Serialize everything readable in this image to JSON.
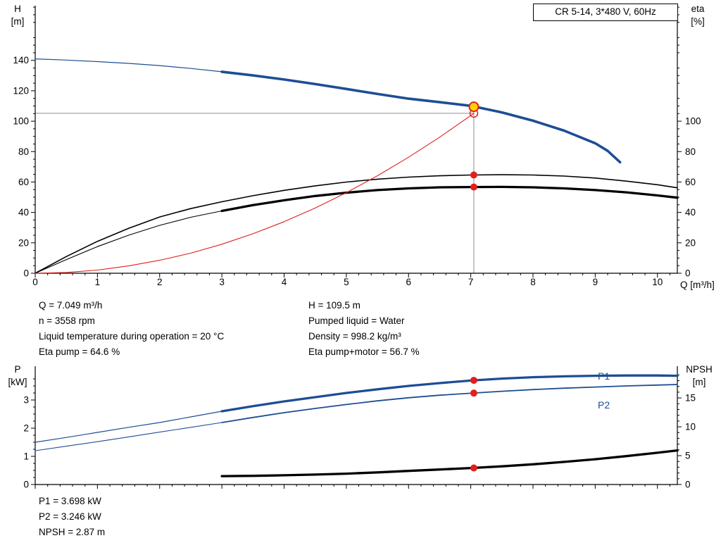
{
  "header": {
    "model_box": "CR 5-14, 3*480 V, 60Hz"
  },
  "top_chart": {
    "left_axis_title": [
      "H",
      "[m]"
    ],
    "right_axis_title": [
      "eta",
      "[%]"
    ],
    "x_axis_title": "Q [m³/h]"
  },
  "bottom_chart": {
    "left_axis_title": [
      "P",
      "[kW]"
    ],
    "right_axis_title": [
      "NPSH",
      "[m]"
    ]
  },
  "results_top": {
    "left": [
      "Q = 7.049 m³/h",
      "n = 3558 rpm",
      "Liquid temperature during operation = 20 °C",
      "Eta pump = 64.6 %"
    ],
    "right": [
      "H = 109.5 m",
      "Pumped liquid = Water",
      "Density = 998.2 kg/m³",
      "Eta pump+motor = 56.7 %"
    ]
  },
  "results_bottom": [
    "P1 = 3.698 kW",
    "P2 = 3.246 kW",
    "NPSH = 2.87 m"
  ],
  "colors": {
    "curve_blue": "#1d4e94",
    "curve_black": "#000000",
    "curve_red": "#e01f1f",
    "marker_red": "#e01f1f",
    "marker_yellow": "#ffd500",
    "crosshair_gray": "#8f8f8f"
  },
  "chart_data": [
    {
      "id": "qh_eta",
      "type": "line",
      "title": "CR 5-14, 3*480 V, 60Hz",
      "xlabel": "Q [m³/h]",
      "ylabel_left": "H [m]",
      "ylabel_right": "eta [%]",
      "xlim": [
        0,
        10.32
      ],
      "ylim_left": [
        0,
        176
      ],
      "ylim_right": [
        0,
        176
      ],
      "x_ticks": [
        0,
        1,
        2,
        3,
        4,
        5,
        6,
        7,
        8,
        9,
        10
      ],
      "x_minor": 0.2,
      "y_ticks_left": [
        0,
        20,
        40,
        60,
        80,
        100,
        120,
        140
      ],
      "y_minor_left": 5,
      "y_ticks_right": [
        0,
        20,
        40,
        60,
        80,
        100
      ],
      "y_minor_right": 5,
      "grid": false,
      "legend": "none",
      "series": [
        {
          "name": "H",
          "axis": "left",
          "color": "#1d4e94",
          "thick_from": 3,
          "width_thin": 1.2,
          "width_thick": 3.6,
          "points": [
            [
              0,
              141
            ],
            [
              0.5,
              140.2
            ],
            [
              1,
              139.2
            ],
            [
              1.5,
              138
            ],
            [
              2,
              136.6
            ],
            [
              2.5,
              134.7
            ],
            [
              3,
              132.5
            ],
            [
              3.5,
              130.1
            ],
            [
              4,
              127.4
            ],
            [
              4.5,
              124.4
            ],
            [
              5,
              121.2
            ],
            [
              5.5,
              117.9
            ],
            [
              6,
              114.8
            ],
            [
              6.5,
              112.5
            ],
            [
              7,
              110.1
            ],
            [
              7.5,
              105.8
            ],
            [
              8,
              100.3
            ],
            [
              8.5,
              93.8
            ],
            [
              9,
              85.5
            ],
            [
              9.2,
              80.5
            ],
            [
              9.4,
              73
            ]
          ]
        },
        {
          "name": "Eta pump",
          "axis": "right",
          "color": "#000000",
          "width": 1.6,
          "points": [
            [
              0,
              0
            ],
            [
              0.5,
              11
            ],
            [
              1,
              21
            ],
            [
              1.5,
              29.5
            ],
            [
              2,
              37
            ],
            [
              2.5,
              42.5
            ],
            [
              3,
              47
            ],
            [
              3.5,
              51
            ],
            [
              4,
              54.5
            ],
            [
              4.5,
              57.5
            ],
            [
              5,
              60
            ],
            [
              5.5,
              61.9
            ],
            [
              6,
              63.2
            ],
            [
              6.5,
              64.1
            ],
            [
              7,
              64.6
            ],
            [
              7.5,
              64.8
            ],
            [
              8,
              64.6
            ],
            [
              8.5,
              63.9
            ],
            [
              9,
              62.6
            ],
            [
              9.5,
              60.6
            ],
            [
              10,
              58.2
            ],
            [
              10.32,
              56.2
            ]
          ]
        },
        {
          "name": "Eta pump+motor",
          "axis": "right",
          "color": "#000000",
          "thick_from": 3,
          "width_thin": 1.1,
          "width_thick": 3.3,
          "points": [
            [
              0,
              0
            ],
            [
              0.5,
              9
            ],
            [
              1,
              17.5
            ],
            [
              1.5,
              25
            ],
            [
              2,
              31.5
            ],
            [
              2.5,
              36.8
            ],
            [
              3,
              41
            ],
            [
              3.5,
              44.8
            ],
            [
              4,
              48
            ],
            [
              4.5,
              50.8
            ],
            [
              5,
              53
            ],
            [
              5.5,
              54.7
            ],
            [
              6,
              55.8
            ],
            [
              6.5,
              56.5
            ],
            [
              7,
              56.7
            ],
            [
              7.5,
              56.8
            ],
            [
              8,
              56.5
            ],
            [
              8.5,
              55.8
            ],
            [
              9,
              54.7
            ],
            [
              9.5,
              53.2
            ],
            [
              10,
              51.2
            ],
            [
              10.32,
              49.7
            ]
          ]
        },
        {
          "name": "Reduced speed curve",
          "axis": "left",
          "color": "#e01f1f",
          "width": 1.1,
          "points": [
            [
              0,
              0
            ],
            [
              0.5,
              0.5
            ],
            [
              1,
              2.1
            ],
            [
              1.5,
              4.8
            ],
            [
              2,
              8.5
            ],
            [
              2.5,
              13.2
            ],
            [
              3,
              19.1
            ],
            [
              3.5,
              26
            ],
            [
              4,
              33.9
            ],
            [
              4.5,
              42.9
            ],
            [
              5,
              53
            ],
            [
              5.5,
              64.1
            ],
            [
              6,
              76.3
            ],
            [
              6.5,
              89.5
            ],
            [
              7,
              103.7
            ],
            [
              7.05,
              105.2
            ]
          ]
        }
      ],
      "markers": [
        {
          "name": "head-ring-marker",
          "kind": "ring",
          "x": 7.05,
          "y": 105.2,
          "axis": "left",
          "r": 5.5
        },
        {
          "name": "duty-point-marker",
          "kind": "duty",
          "x": 7.049,
          "y": 109.5,
          "axis": "left",
          "r": 6.5
        },
        {
          "name": "eta-pump-point-marker",
          "kind": "dot",
          "x": 7.049,
          "y": 64.6,
          "axis": "right",
          "r": 5
        },
        {
          "name": "eta-pump-motor-point-marker",
          "kind": "dot",
          "x": 7.049,
          "y": 56.7,
          "axis": "right",
          "r": 5
        }
      ],
      "crosshair": {
        "x": 7.049,
        "v_top": 109.5,
        "h_level": 105.2,
        "h_end": 7.05
      },
      "duty_point": {
        "Q": 7.049,
        "H": 109.5,
        "eta_pump": 64.6,
        "eta_pump_motor": 56.7
      }
    },
    {
      "id": "power_npsh",
      "type": "line",
      "title": "",
      "xlabel": "Q [m³/h]",
      "ylabel_left": "P [kW]",
      "ylabel_right": "NPSH [m]",
      "xlim": [
        0,
        10.32
      ],
      "ylim_left": [
        0,
        4.2
      ],
      "ylim_right": [
        0,
        20.5
      ],
      "x_ticks": [
        0,
        1,
        2,
        3,
        4,
        5,
        6,
        7,
        8,
        9,
        10
      ],
      "x_minor": 0.2,
      "y_ticks_left": [
        0,
        1,
        2,
        3
      ],
      "y_minor_left": 0.25,
      "y_ticks_right": [
        0,
        5,
        10,
        15
      ],
      "y_minor_right": 1,
      "grid": false,
      "legend": "inline-right",
      "series": [
        {
          "name": "P1",
          "axis": "left",
          "color": "#1d4e94",
          "thick_from": 3,
          "width_thin": 1.2,
          "width_thick": 3.3,
          "points": [
            [
              0,
              1.5
            ],
            [
              0.5,
              1.67
            ],
            [
              1,
              1.85
            ],
            [
              1.5,
              2.03
            ],
            [
              2,
              2.2
            ],
            [
              2.5,
              2.4
            ],
            [
              3,
              2.6
            ],
            [
              3.5,
              2.78
            ],
            [
              4,
              2.95
            ],
            [
              4.5,
              3.1
            ],
            [
              5,
              3.25
            ],
            [
              5.5,
              3.38
            ],
            [
              6,
              3.5
            ],
            [
              6.5,
              3.6
            ],
            [
              7,
              3.69
            ],
            [
              7.5,
              3.76
            ],
            [
              8,
              3.81
            ],
            [
              8.5,
              3.84
            ],
            [
              9,
              3.86
            ],
            [
              9.5,
              3.87
            ],
            [
              10,
              3.87
            ],
            [
              10.32,
              3.86
            ]
          ]
        },
        {
          "name": "P2",
          "axis": "left",
          "color": "#1d4e94",
          "thick_from": 3,
          "width_thin": 1.1,
          "width_thick": 1.8,
          "points": [
            [
              0,
              1.2
            ],
            [
              0.5,
              1.36
            ],
            [
              1,
              1.52
            ],
            [
              1.5,
              1.69
            ],
            [
              2,
              1.86
            ],
            [
              2.5,
              2.03
            ],
            [
              3,
              2.2
            ],
            [
              3.5,
              2.38
            ],
            [
              4,
              2.55
            ],
            [
              4.5,
              2.7
            ],
            [
              5,
              2.84
            ],
            [
              5.5,
              2.97
            ],
            [
              6,
              3.08
            ],
            [
              6.5,
              3.17
            ],
            [
              7,
              3.24
            ],
            [
              7.5,
              3.31
            ],
            [
              8,
              3.37
            ],
            [
              8.5,
              3.42
            ],
            [
              9,
              3.46
            ],
            [
              9.5,
              3.5
            ],
            [
              10,
              3.53
            ],
            [
              10.32,
              3.55
            ]
          ]
        },
        {
          "name": "NPSH",
          "axis": "right",
          "color": "#000000",
          "width": 3.3,
          "points": [
            [
              3,
              1.45
            ],
            [
              3.5,
              1.5
            ],
            [
              4,
              1.6
            ],
            [
              4.5,
              1.72
            ],
            [
              5,
              1.88
            ],
            [
              5.5,
              2.1
            ],
            [
              6,
              2.35
            ],
            [
              6.5,
              2.6
            ],
            [
              7,
              2.85
            ],
            [
              7.5,
              3.15
            ],
            [
              8,
              3.5
            ],
            [
              8.5,
              3.92
            ],
            [
              9,
              4.38
            ],
            [
              9.5,
              4.92
            ],
            [
              10,
              5.5
            ],
            [
              10.32,
              5.9
            ]
          ]
        }
      ],
      "markers": [
        {
          "name": "p1-point-marker",
          "kind": "dot",
          "x": 7.049,
          "y": 3.698,
          "axis": "left",
          "r": 5
        },
        {
          "name": "p2-point-marker",
          "kind": "dot",
          "x": 7.049,
          "y": 3.246,
          "axis": "left",
          "r": 5
        },
        {
          "name": "npsh-point-marker",
          "kind": "dot",
          "x": 7.049,
          "y": 2.87,
          "axis": "right",
          "r": 5
        }
      ],
      "duty_point": {
        "Q": 7.049,
        "P1": 3.698,
        "P2": 3.246,
        "NPSH": 2.87
      }
    }
  ]
}
